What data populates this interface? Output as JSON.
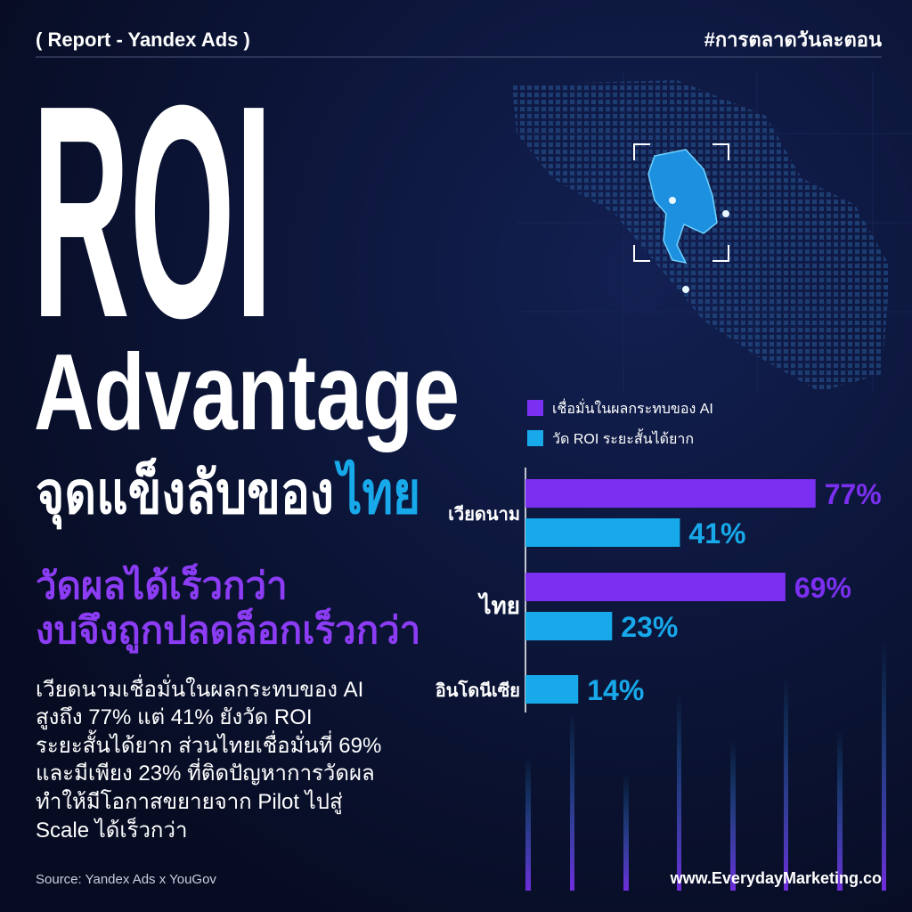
{
  "header": {
    "report": "( Report - Yandex Ads )",
    "hashtag": "#การตลาดวันละตอน"
  },
  "title": {
    "line1": "ROI",
    "line2": "Advantage",
    "subtitle": "จุดแข็งลับของ",
    "subtitle_highlight": "ไทย"
  },
  "headline": [
    "วัดผลได้เร็วกว่า",
    "งบจึงถูกปลดล็อกเร็วกว่า"
  ],
  "body": [
    "เวียดนามเชื่อมั่นในผลกระทบของ AI",
    "สูงถึง 77% แต่ 41% ยังวัด ROI",
    "ระยะสั้นได้ยาก ส่วนไทยเชื่อมั่นที่ 69%",
    "และมีเพียง 23% ที่ติดปัญหาการวัดผล",
    "ทำให้มีโอกาสขยายจาก Pilot ไปสู่",
    "Scale ได้เร็วกว่า"
  ],
  "footer": {
    "source": "Source: Yandex Ads x YouGov",
    "website": "www.EverydayMarketing.co"
  },
  "chart_data": {
    "type": "bar",
    "orientation": "horizontal",
    "categories": [
      "เวียดนาม",
      "ไทย",
      "อินโดนีเซีย"
    ],
    "series": [
      {
        "name": "เชื่อมั่นในผลกระทบของ AI",
        "color": "#7b2ff0",
        "values": [
          77,
          69,
          null
        ],
        "value_labels": [
          "77%",
          "69%",
          null
        ]
      },
      {
        "name": "วัด ROI ระยะสั้นได้ยาก",
        "color": "#17a9ea",
        "values": [
          41,
          23,
          14
        ],
        "value_labels": [
          "41%",
          "23%",
          "14%"
        ]
      }
    ],
    "legend": "top-left"
  }
}
